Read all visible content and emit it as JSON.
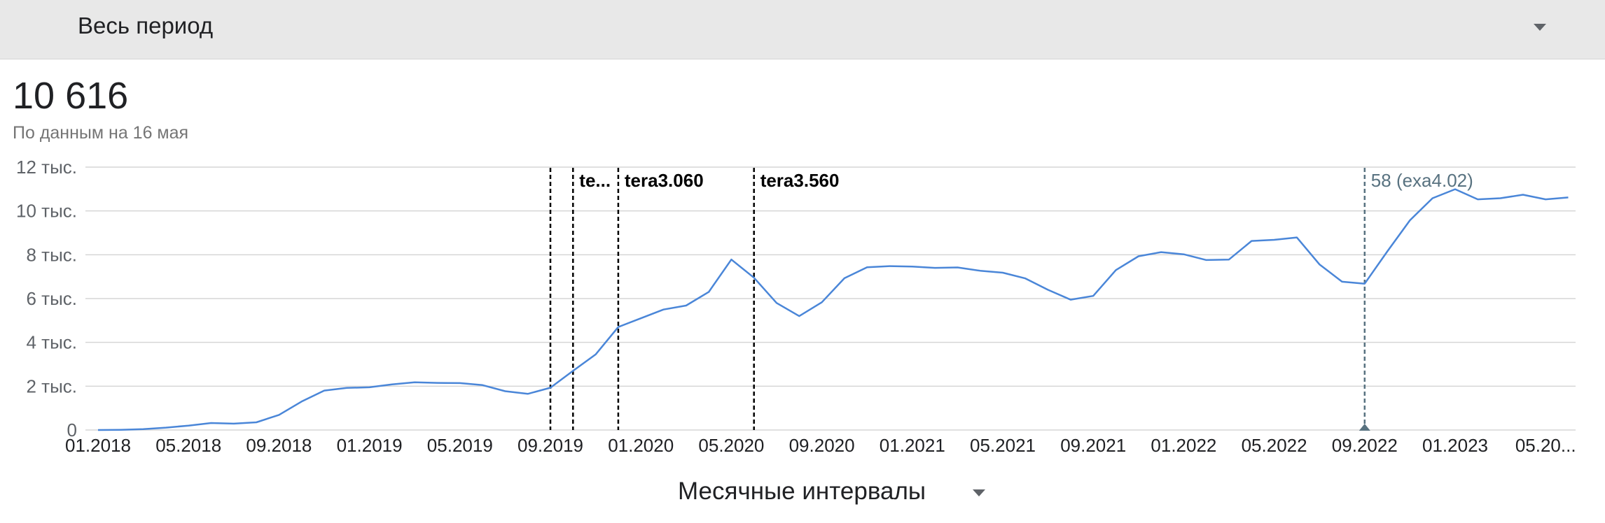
{
  "header": {
    "period_label": "Весь период",
    "period_dropdown_icon": "chevron-down-icon"
  },
  "summary": {
    "total_value": "10 616",
    "as_of": "По данным на 16 мая"
  },
  "footer": {
    "interval_label": "Месячные интервалы",
    "interval_dropdown_icon": "chevron-down-icon"
  },
  "colors": {
    "line": "#4a86d8",
    "grid": "#d6d6d6",
    "annotation": "#000000",
    "selected_annotation": "#587280"
  },
  "chart_data": {
    "type": "line",
    "x_start": "01.2018",
    "x_tick_labels": [
      "01.2018",
      "05.2018",
      "09.2018",
      "01.2019",
      "05.2019",
      "09.2019",
      "01.2020",
      "05.2020",
      "09.2020",
      "01.2021",
      "05.2021",
      "09.2021",
      "01.2022",
      "05.2022",
      "09.2022",
      "01.2023",
      "05.20..."
    ],
    "y_ticks": [
      0,
      2000,
      4000,
      6000,
      8000,
      10000,
      12000
    ],
    "y_tick_labels": [
      "0",
      "2 тыс.",
      "4 тыс.",
      "6 тыс.",
      "8 тыс.",
      "10 тыс.",
      "12 тыс."
    ],
    "ylim": [
      0,
      12000
    ],
    "series": [
      {
        "values": [
          0,
          10,
          40,
          110,
          200,
          320,
          290,
          350,
          690,
          1300,
          1800,
          1920,
          1950,
          2080,
          2180,
          2150,
          2140,
          2050,
          1770,
          1650,
          1930,
          2700,
          3450,
          4700,
          5100,
          5500,
          5680,
          6300,
          7780,
          6950,
          5800,
          5200,
          5830,
          6930,
          7430,
          7480,
          7460,
          7400,
          7420,
          7270,
          7180,
          6920,
          6400,
          5950,
          6120,
          7300,
          7930,
          8120,
          8020,
          7760,
          7780,
          8630,
          8680,
          8790,
          7560,
          6770,
          6680,
          8150,
          9570,
          10580,
          10990,
          10530,
          10580,
          10740,
          10530,
          10616
        ]
      }
    ],
    "annotations": [
      {
        "label": "",
        "x": "09.2019"
      },
      {
        "label": "te...",
        "x": "10.2019"
      },
      {
        "label": "tera3.060",
        "x": "12.2019"
      },
      {
        "label": "tera3.560",
        "x": "06.2020"
      },
      {
        "label": "58 (exa4.02)",
        "x": "09.2022",
        "selected": true
      }
    ],
    "grid": true
  }
}
